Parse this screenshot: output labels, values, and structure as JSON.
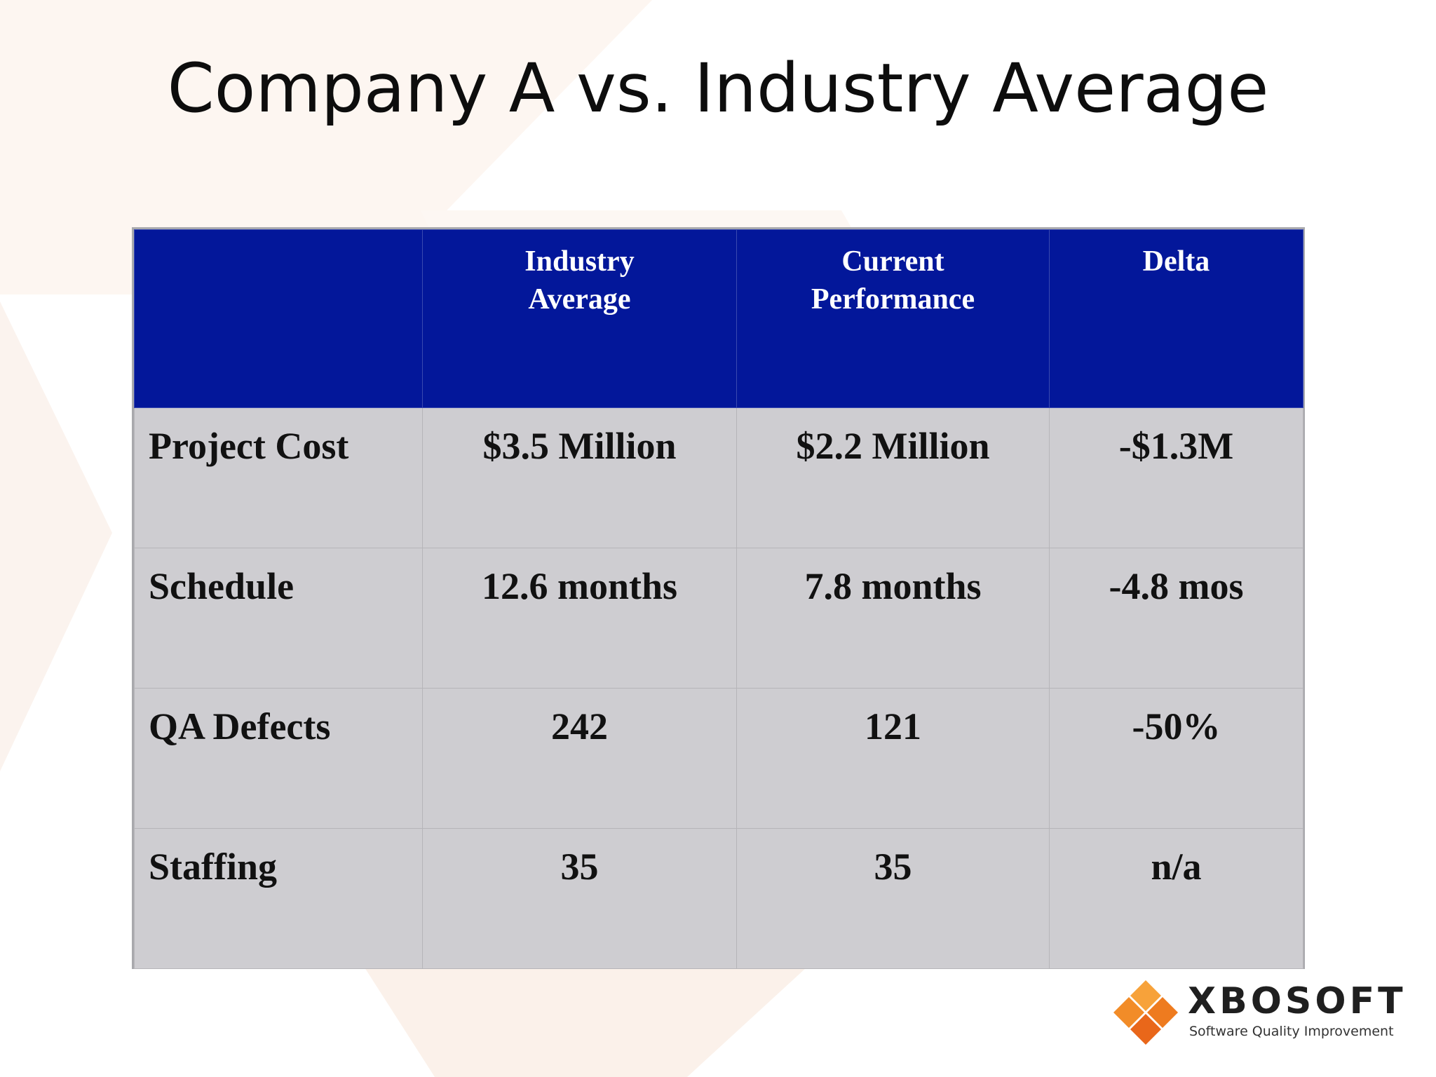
{
  "title": "Company A vs. Industry Average",
  "table": {
    "headers": [
      {
        "lines": []
      },
      {
        "lines": [
          "Industry",
          "Average"
        ]
      },
      {
        "lines": [
          "Current",
          "Performance"
        ]
      },
      {
        "lines": [
          "Delta"
        ]
      }
    ],
    "rows": [
      {
        "label": "Project Cost",
        "industry": "$3.5 Million",
        "current": "$2.2 Million",
        "delta": "-$1.3M"
      },
      {
        "label": "Schedule",
        "industry": "12.6 months",
        "current": "7.8 months",
        "delta": "-4.8 mos"
      },
      {
        "label": "QA Defects",
        "industry": "242",
        "current": "121",
        "delta": "-50%"
      },
      {
        "label": "Staffing",
        "industry": "35",
        "current": "35",
        "delta": "n/a"
      }
    ]
  },
  "logo": {
    "name": "XBOSOFT",
    "tagline": "Software Quality Improvement"
  },
  "colors": {
    "header_bg": "#03179a",
    "body_bg": "#cecdd1",
    "logo_orange": "#f08a24"
  }
}
